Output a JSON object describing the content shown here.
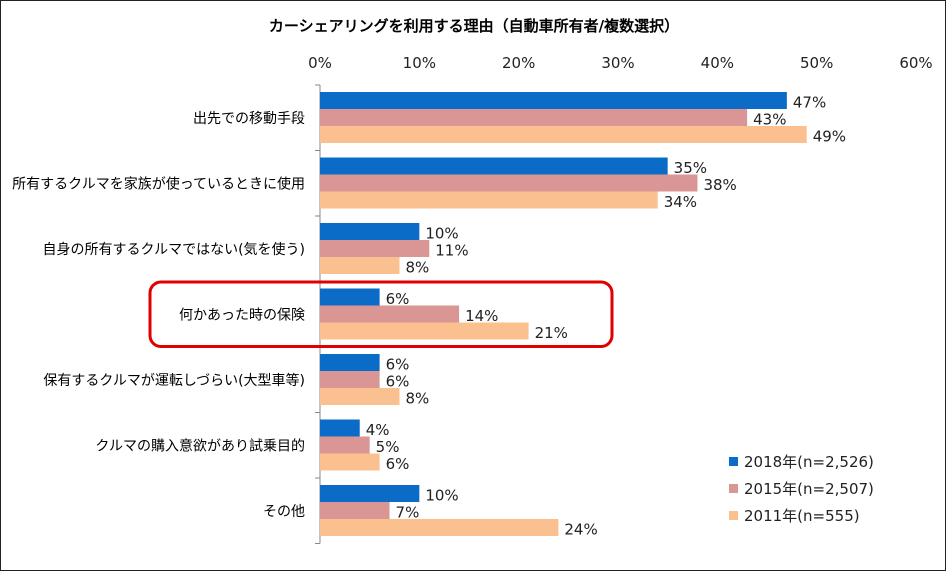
{
  "chart_data": {
    "type": "bar",
    "orientation": "horizontal",
    "title": "カーシェアリングを利用する理由（自動車所有者/複数選択）",
    "xlim": [
      0,
      60
    ],
    "ticks": [
      "0%",
      "10%",
      "20%",
      "30%",
      "40%",
      "50%",
      "60%"
    ],
    "tick_values": [
      0,
      10,
      20,
      30,
      40,
      50,
      60
    ],
    "categories": [
      "出先での移動手段",
      "所有するクルマを家族が使っているときに使用",
      "自身の所有するクルマではない(気を使う)",
      "何かあった時の保険",
      "保有するクルマが運転しづらい(大型車等)",
      "クルマの購入意欲があり試乗目的",
      "その他"
    ],
    "series": [
      {
        "name": "2018年(n=2,526)",
        "color": "#0a6cc6",
        "values": [
          47,
          35,
          10,
          6,
          6,
          4,
          10
        ],
        "labels": [
          "47%",
          "35%",
          "10%",
          "6%",
          "6%",
          "4%",
          "10%"
        ]
      },
      {
        "name": "2015年(n=2,507)",
        "color": "#d99694",
        "values": [
          43,
          38,
          11,
          14,
          6,
          5,
          7
        ],
        "labels": [
          "43%",
          "38%",
          "11%",
          "14%",
          "6%",
          "5%",
          "7%"
        ]
      },
      {
        "name": "2011年(n=555)",
        "color": "#fac090",
        "values": [
          49,
          34,
          8,
          21,
          8,
          6,
          24
        ],
        "labels": [
          "49%",
          "34%",
          "8%",
          "21%",
          "8%",
          "6%",
          "24%"
        ]
      }
    ],
    "highlighted_category": "何かあった時の保険",
    "highlight_color": "#e00000",
    "legend_position": "bottom-right"
  }
}
